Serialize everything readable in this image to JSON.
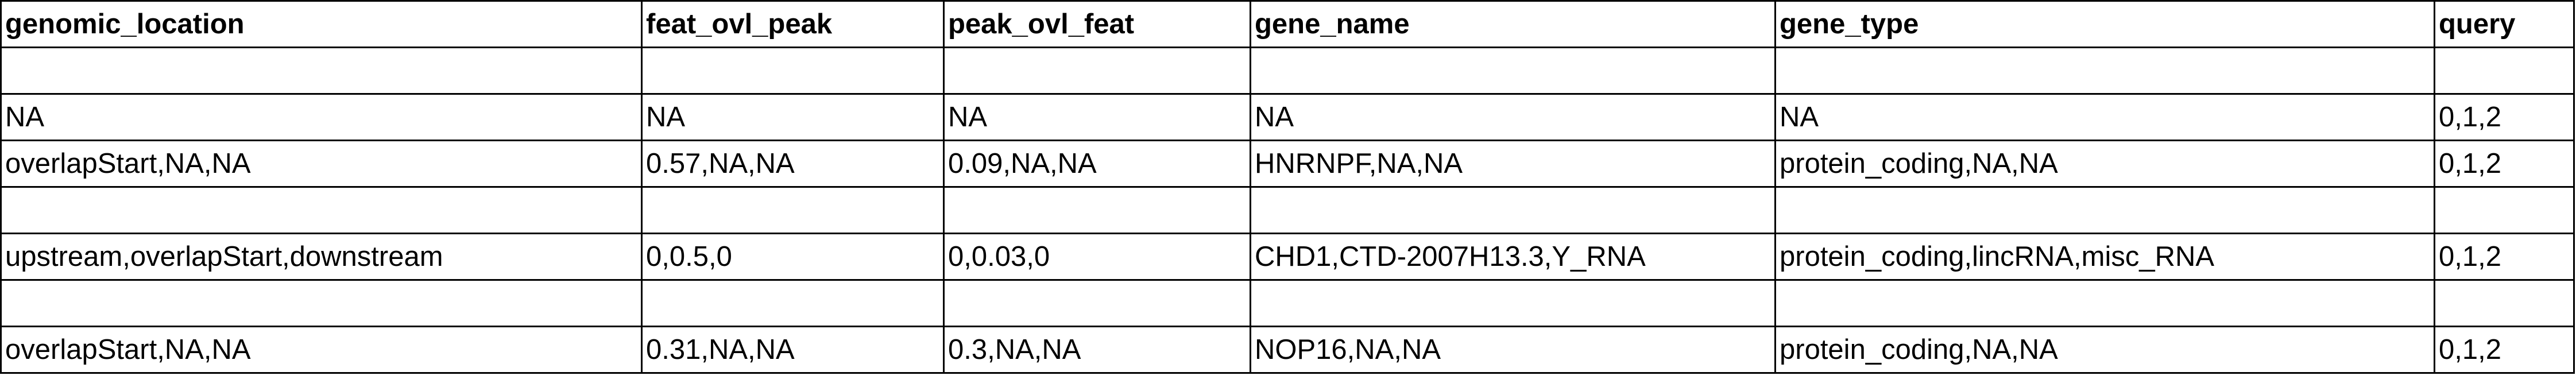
{
  "table": {
    "headers": [
      "genomic_location",
      "feat_ovl_peak",
      "peak_ovl_feat",
      "gene_name",
      "gene_type",
      "query"
    ],
    "rows": [
      [
        "",
        "",
        "",
        "",
        "",
        ""
      ],
      [
        "NA",
        "NA",
        "NA",
        "NA",
        "NA",
        "0,1,2"
      ],
      [
        "overlapStart,NA,NA",
        "0.57,NA,NA",
        "0.09,NA,NA",
        "HNRNPF,NA,NA",
        "protein_coding,NA,NA",
        "0,1,2"
      ],
      [
        "",
        "",
        "",
        "",
        "",
        ""
      ],
      [
        "upstream,overlapStart,downstream",
        "0,0.5,0",
        "0,0.03,0",
        "CHD1,CTD-2007H13.3,Y_RNA",
        "protein_coding,lincRNA,misc_RNA",
        "0,1,2"
      ],
      [
        "",
        "",
        "",
        "",
        "",
        ""
      ],
      [
        "overlapStart,NA,NA",
        "0.31,NA,NA",
        "0.3,NA,NA",
        "NOP16,NA,NA",
        "protein_coding,NA,NA",
        "0,1,2"
      ]
    ]
  }
}
